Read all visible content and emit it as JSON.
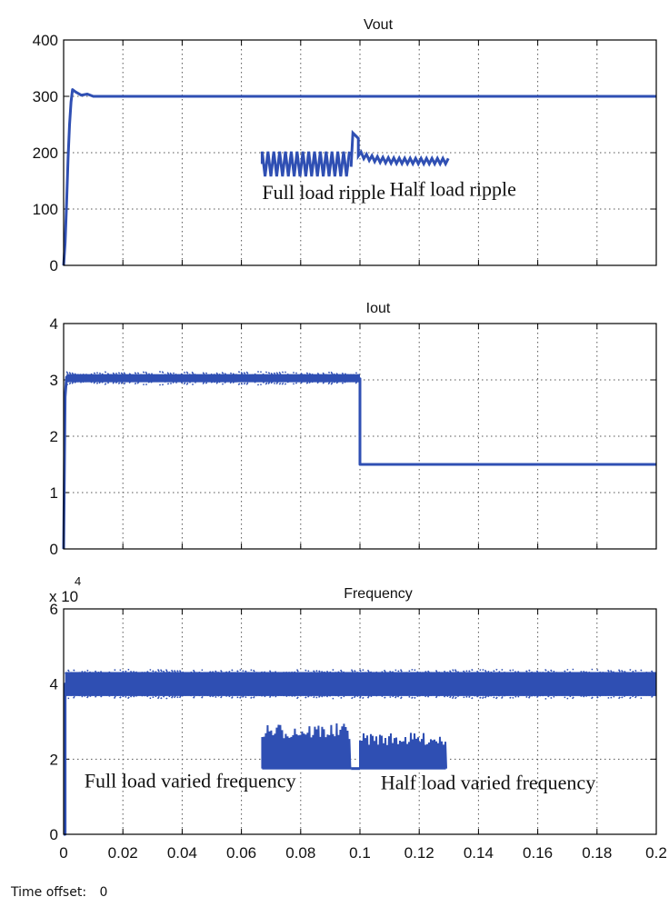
{
  "figure": {
    "time_offset_label": "Time offset:",
    "time_offset_value": "0"
  },
  "colors": {
    "trace": "#2f4fb3",
    "axes": "#000000",
    "grid": "#555555",
    "annotation_text": "#111111"
  },
  "chart_data": [
    {
      "type": "line",
      "title": "Vout",
      "xlabel": "",
      "ylabel": "",
      "xlim": [
        0,
        0.2
      ],
      "ylim": [
        0,
        400
      ],
      "xticks": [
        0,
        0.02,
        0.04,
        0.06,
        0.08,
        0.1,
        0.12,
        0.14,
        0.16,
        0.18,
        0.2
      ],
      "xtick_labels": [],
      "yticks": [
        0,
        100,
        200,
        300,
        400
      ],
      "ytick_labels": [
        "0",
        "100",
        "200",
        "300",
        "400"
      ],
      "grid": true,
      "series": [
        {
          "x": [
            0,
            0.0005,
            0.001,
            0.0015,
            0.002,
            0.0025,
            0.003,
            0.004,
            0.006,
            0.008,
            0.01,
            0.2
          ],
          "y": [
            0,
            40,
            110,
            190,
            250,
            290,
            312,
            308,
            302,
            304,
            300,
            300
          ]
        }
      ],
      "inset": {
        "description_segments": [
          {
            "x_range": [
              0.067,
              0.097
            ],
            "y_center": 180,
            "amplitude": 22,
            "kind": "ripple"
          },
          {
            "x_range": [
              0.097,
              0.13
            ],
            "y_center": 185,
            "kind": "step_transient",
            "peak": 235
          }
        ],
        "labels": [
          {
            "text": "Full load ripple",
            "x": 0.067,
            "y": 118
          },
          {
            "text": "Half load ripple",
            "x": 0.11,
            "y": 123
          }
        ]
      }
    },
    {
      "type": "line",
      "title": "Iout",
      "xlabel": "",
      "ylabel": "",
      "xlim": [
        0,
        0.2
      ],
      "ylim": [
        0,
        4
      ],
      "xticks": [
        0,
        0.02,
        0.04,
        0.06,
        0.08,
        0.1,
        0.12,
        0.14,
        0.16,
        0.18,
        0.2
      ],
      "xtick_labels": [],
      "yticks": [
        0,
        1,
        2,
        3,
        4
      ],
      "ytick_labels": [
        "0",
        "1",
        "2",
        "3",
        "4"
      ],
      "grid": true,
      "series": [
        {
          "x": [
            0,
            0.0005,
            0.001,
            0.003,
            0.1,
            0.1,
            0.2
          ],
          "y": [
            0,
            2.7,
            3.05,
            3.05,
            3.02,
            1.5,
            1.5
          ],
          "band": [
            0.001,
            0.1,
            0.12
          ]
        }
      ]
    },
    {
      "type": "line",
      "title": "Frequency",
      "exponent_label": "x 10",
      "exponent_power": "4",
      "xlabel": "",
      "ylabel": "",
      "xlim": [
        0,
        0.2
      ],
      "ylim": [
        0,
        6
      ],
      "xticks": [
        0,
        0.02,
        0.04,
        0.06,
        0.08,
        0.1,
        0.12,
        0.14,
        0.16,
        0.18,
        0.2
      ],
      "xtick_labels": [
        "0",
        "0.02",
        "0.04",
        "0.06",
        "0.08",
        "0.1",
        "0.12",
        "0.14",
        "0.16",
        "0.18",
        "0.2"
      ],
      "yticks": [
        0,
        2,
        4,
        6
      ],
      "ytick_labels": [
        "0",
        "2",
        "4",
        "6"
      ],
      "grid": true,
      "series": [
        {
          "x": [
            0,
            0.0005,
            0.0005,
            0.2
          ],
          "y": [
            0,
            0,
            4.0,
            4.0
          ],
          "band": [
            0.0005,
            0.2,
            0.32
          ]
        }
      ],
      "inset": {
        "description_segments": [
          {
            "x_range": [
              0.067,
              0.097
            ],
            "low": 1.75,
            "high": 2.95,
            "kind": "varied"
          },
          {
            "x_range": [
              0.1,
              0.129
            ],
            "low": 1.75,
            "high": 2.7,
            "kind": "varied"
          }
        ],
        "labels": [
          {
            "text": "Full load varied frequency",
            "x": 0.007,
            "y": 1.25
          },
          {
            "text": "Half load varied frequency",
            "x": 0.107,
            "y": 1.2
          }
        ]
      }
    }
  ]
}
